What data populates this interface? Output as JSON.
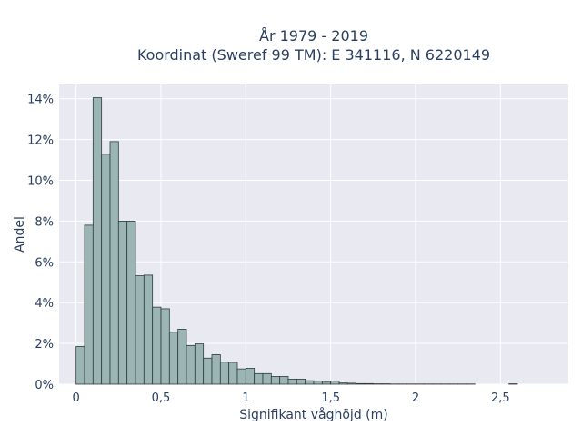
{
  "chart_data": {
    "type": "bar",
    "title_line1": "År 1979 - 2019",
    "title_line2": "Koordinat (Sweref 99 TM): E 341116, N 6220149",
    "xlabel": "Signifikant våghöjd (m)",
    "ylabel": "Andel",
    "xlim": [
      -0.1,
      2.9
    ],
    "ylim": [
      0,
      0.147
    ],
    "x_ticks": [
      {
        "value": 0,
        "label": "0"
      },
      {
        "value": 0.5,
        "label": "0,5"
      },
      {
        "value": 1,
        "label": "1"
      },
      {
        "value": 1.5,
        "label": "1,5"
      },
      {
        "value": 2,
        "label": "2"
      },
      {
        "value": 2.5,
        "label": "2,5"
      }
    ],
    "y_ticks": [
      {
        "value": 0,
        "label": "0%"
      },
      {
        "value": 0.02,
        "label": "2%"
      },
      {
        "value": 0.04,
        "label": "4%"
      },
      {
        "value": 0.06,
        "label": "6%"
      },
      {
        "value": 0.08,
        "label": "8%"
      },
      {
        "value": 0.1,
        "label": "10%"
      },
      {
        "value": 0.12,
        "label": "12%"
      },
      {
        "value": 0.14,
        "label": "14%"
      }
    ],
    "grid": true,
    "bin_width": 0.05,
    "bin_starts": [
      0,
      0.05,
      0.1,
      0.15,
      0.2,
      0.25,
      0.3,
      0.35,
      0.4,
      0.45,
      0.5,
      0.55,
      0.6,
      0.65,
      0.7,
      0.75,
      0.8,
      0.85,
      0.9,
      0.95,
      1.0,
      1.05,
      1.1,
      1.15,
      1.2,
      1.25,
      1.3,
      1.35,
      1.4,
      1.45,
      1.5,
      1.55,
      1.6,
      1.65,
      1.7,
      1.75,
      1.8,
      1.85,
      1.9,
      1.95,
      2.0,
      2.05,
      2.1,
      2.15,
      2.2,
      2.25,
      2.3,
      2.35,
      2.4,
      2.45,
      2.5,
      2.55
    ],
    "values": [
      0.0185,
      0.078,
      0.1405,
      0.1128,
      0.119,
      0.08,
      0.08,
      0.0532,
      0.0535,
      0.0378,
      0.037,
      0.0255,
      0.027,
      0.019,
      0.0198,
      0.0128,
      0.0145,
      0.0108,
      0.0107,
      0.0075,
      0.0078,
      0.0052,
      0.0052,
      0.0038,
      0.0038,
      0.0025,
      0.0025,
      0.0017,
      0.0015,
      0.001,
      0.0015,
      0.0006,
      0.0005,
      0.0003,
      0.0003,
      0.0002,
      0.0002,
      0.0001,
      0.0001,
      0.0001,
      0.0001,
      0.0001,
      0.0001,
      0.0001,
      0.0001,
      0.0001,
      0.0001,
      0,
      0,
      0,
      0,
      0.0002
    ]
  }
}
